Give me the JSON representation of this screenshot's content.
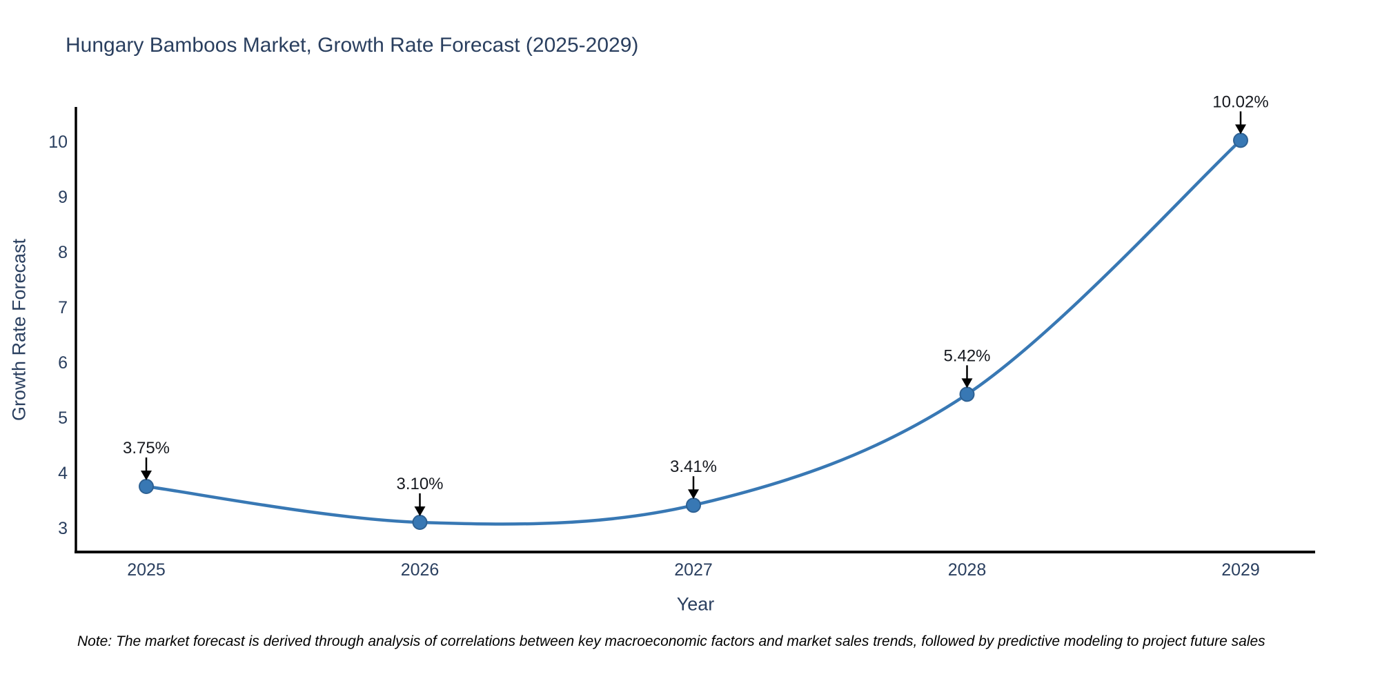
{
  "title": "Hungary Bamboos Market, Growth Rate Forecast (2025-2029)",
  "note": "Note: The market forecast is derived through analysis of correlations between key macroeconomic factors and market sales trends, followed by predictive modeling to project future sales",
  "chart_data": {
    "type": "line",
    "title": "Hungary Bamboos Market, Growth Rate Forecast (2025-2029)",
    "xlabel": "Year",
    "ylabel": "Growth Rate Forecast",
    "categories": [
      "2025",
      "2026",
      "2027",
      "2028",
      "2029"
    ],
    "values": [
      3.75,
      3.1,
      3.41,
      5.42,
      10.02
    ],
    "point_labels": [
      "3.75%",
      "3.10%",
      "3.41%",
      "5.42%",
      "10.02%"
    ],
    "ylim": [
      3,
      10
    ],
    "ytick_step": 1,
    "yticks": [
      3,
      4,
      5,
      6,
      7,
      8,
      9,
      10
    ],
    "grid": false,
    "legend": "none",
    "line_shape": "spline",
    "colors": {
      "line": "#3878b4",
      "marker_fill": "#3878b4",
      "marker_edge": "#2e6193",
      "axis": "#000000",
      "tick_text": "#2a3f5f",
      "annotation_text": "#16191f",
      "arrow": "#000000"
    }
  }
}
